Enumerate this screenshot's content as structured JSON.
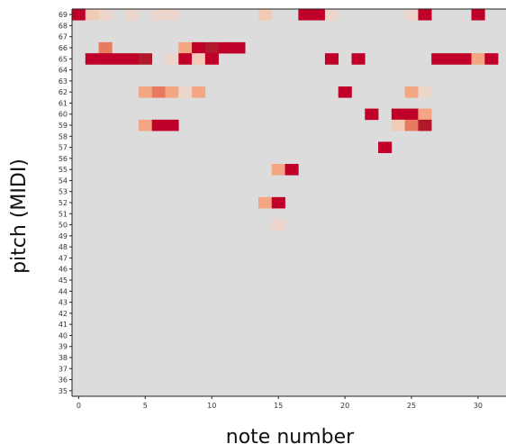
{
  "chart_data": {
    "type": "heatmap",
    "xlabel": "note number",
    "ylabel": "pitch (MIDI)",
    "x_ticks": [
      "0",
      "5",
      "10",
      "15",
      "20",
      "25",
      "30"
    ],
    "y_ticks": [
      "35",
      "36",
      "37",
      "38",
      "39",
      "40",
      "41",
      "42",
      "43",
      "44",
      "45",
      "46",
      "47",
      "48",
      "49",
      "50",
      "51",
      "52",
      "53",
      "54",
      "55",
      "56",
      "57",
      "58",
      "59",
      "60",
      "61",
      "62",
      "63",
      "64",
      "65",
      "66",
      "67",
      "68",
      "69"
    ],
    "x_range": [
      0,
      31
    ],
    "y_range": [
      35,
      69
    ],
    "colorscale": [
      "#dddcdc",
      "#f2cbb7",
      "#f4a582",
      "#e87a5f",
      "#d6604d",
      "#b2182b",
      "#c00028"
    ],
    "background_value": 0,
    "cells": [
      {
        "x": 0,
        "pitch": 69,
        "v": 1.0
      },
      {
        "x": 1,
        "pitch": 69,
        "v": 0.25
      },
      {
        "x": 2,
        "pitch": 69,
        "v": 0.15
      },
      {
        "x": 4,
        "pitch": 69,
        "v": 0.15
      },
      {
        "x": 6,
        "pitch": 69,
        "v": 0.1
      },
      {
        "x": 7,
        "pitch": 69,
        "v": 0.1
      },
      {
        "x": 14,
        "pitch": 69,
        "v": 0.25
      },
      {
        "x": 17,
        "pitch": 69,
        "v": 1.0
      },
      {
        "x": 18,
        "pitch": 69,
        "v": 1.0
      },
      {
        "x": 19,
        "pitch": 69,
        "v": 0.15
      },
      {
        "x": 25,
        "pitch": 69,
        "v": 0.1
      },
      {
        "x": 26,
        "pitch": 69,
        "v": 1.0
      },
      {
        "x": 30,
        "pitch": 69,
        "v": 1.0
      },
      {
        "x": 2,
        "pitch": 66,
        "v": 0.55
      },
      {
        "x": 8,
        "pitch": 66,
        "v": 0.4
      },
      {
        "x": 9,
        "pitch": 66,
        "v": 1.0
      },
      {
        "x": 10,
        "pitch": 66,
        "v": 0.9
      },
      {
        "x": 11,
        "pitch": 66,
        "v": 1.0
      },
      {
        "x": 12,
        "pitch": 66,
        "v": 1.0
      },
      {
        "x": 1,
        "pitch": 65,
        "v": 1.0
      },
      {
        "x": 2,
        "pitch": 65,
        "v": 1.0
      },
      {
        "x": 3,
        "pitch": 65,
        "v": 1.0
      },
      {
        "x": 4,
        "pitch": 65,
        "v": 1.0
      },
      {
        "x": 5,
        "pitch": 65,
        "v": 0.85
      },
      {
        "x": 7,
        "pitch": 65,
        "v": 0.1
      },
      {
        "x": 8,
        "pitch": 65,
        "v": 1.0
      },
      {
        "x": 9,
        "pitch": 65,
        "v": 0.2
      },
      {
        "x": 10,
        "pitch": 65,
        "v": 1.0
      },
      {
        "x": 19,
        "pitch": 65,
        "v": 1.0
      },
      {
        "x": 21,
        "pitch": 65,
        "v": 1.0
      },
      {
        "x": 27,
        "pitch": 65,
        "v": 1.0
      },
      {
        "x": 28,
        "pitch": 65,
        "v": 1.0
      },
      {
        "x": 29,
        "pitch": 65,
        "v": 1.0
      },
      {
        "x": 30,
        "pitch": 65,
        "v": 0.35
      },
      {
        "x": 31,
        "pitch": 65,
        "v": 1.0
      },
      {
        "x": 5,
        "pitch": 62,
        "v": 0.5
      },
      {
        "x": 6,
        "pitch": 62,
        "v": 0.6
      },
      {
        "x": 7,
        "pitch": 62,
        "v": 0.45
      },
      {
        "x": 8,
        "pitch": 62,
        "v": 0.1
      },
      {
        "x": 9,
        "pitch": 62,
        "v": 0.45
      },
      {
        "x": 20,
        "pitch": 62,
        "v": 1.0
      },
      {
        "x": 25,
        "pitch": 62,
        "v": 0.45
      },
      {
        "x": 26,
        "pitch": 62,
        "v": 0.1
      },
      {
        "x": 22,
        "pitch": 60,
        "v": 1.0
      },
      {
        "x": 24,
        "pitch": 60,
        "v": 1.0
      },
      {
        "x": 25,
        "pitch": 60,
        "v": 1.0
      },
      {
        "x": 26,
        "pitch": 60,
        "v": 0.5
      },
      {
        "x": 5,
        "pitch": 59,
        "v": 0.45
      },
      {
        "x": 6,
        "pitch": 59,
        "v": 1.0
      },
      {
        "x": 7,
        "pitch": 59,
        "v": 1.0
      },
      {
        "x": 24,
        "pitch": 59,
        "v": 0.3
      },
      {
        "x": 25,
        "pitch": 59,
        "v": 0.6
      },
      {
        "x": 26,
        "pitch": 59,
        "v": 0.9
      },
      {
        "x": 23,
        "pitch": 57,
        "v": 1.0
      },
      {
        "x": 15,
        "pitch": 55,
        "v": 0.5
      },
      {
        "x": 16,
        "pitch": 55,
        "v": 1.0
      },
      {
        "x": 14,
        "pitch": 52,
        "v": 0.45
      },
      {
        "x": 15,
        "pitch": 52,
        "v": 1.0
      },
      {
        "x": 15,
        "pitch": 50,
        "v": 0.1
      }
    ]
  }
}
